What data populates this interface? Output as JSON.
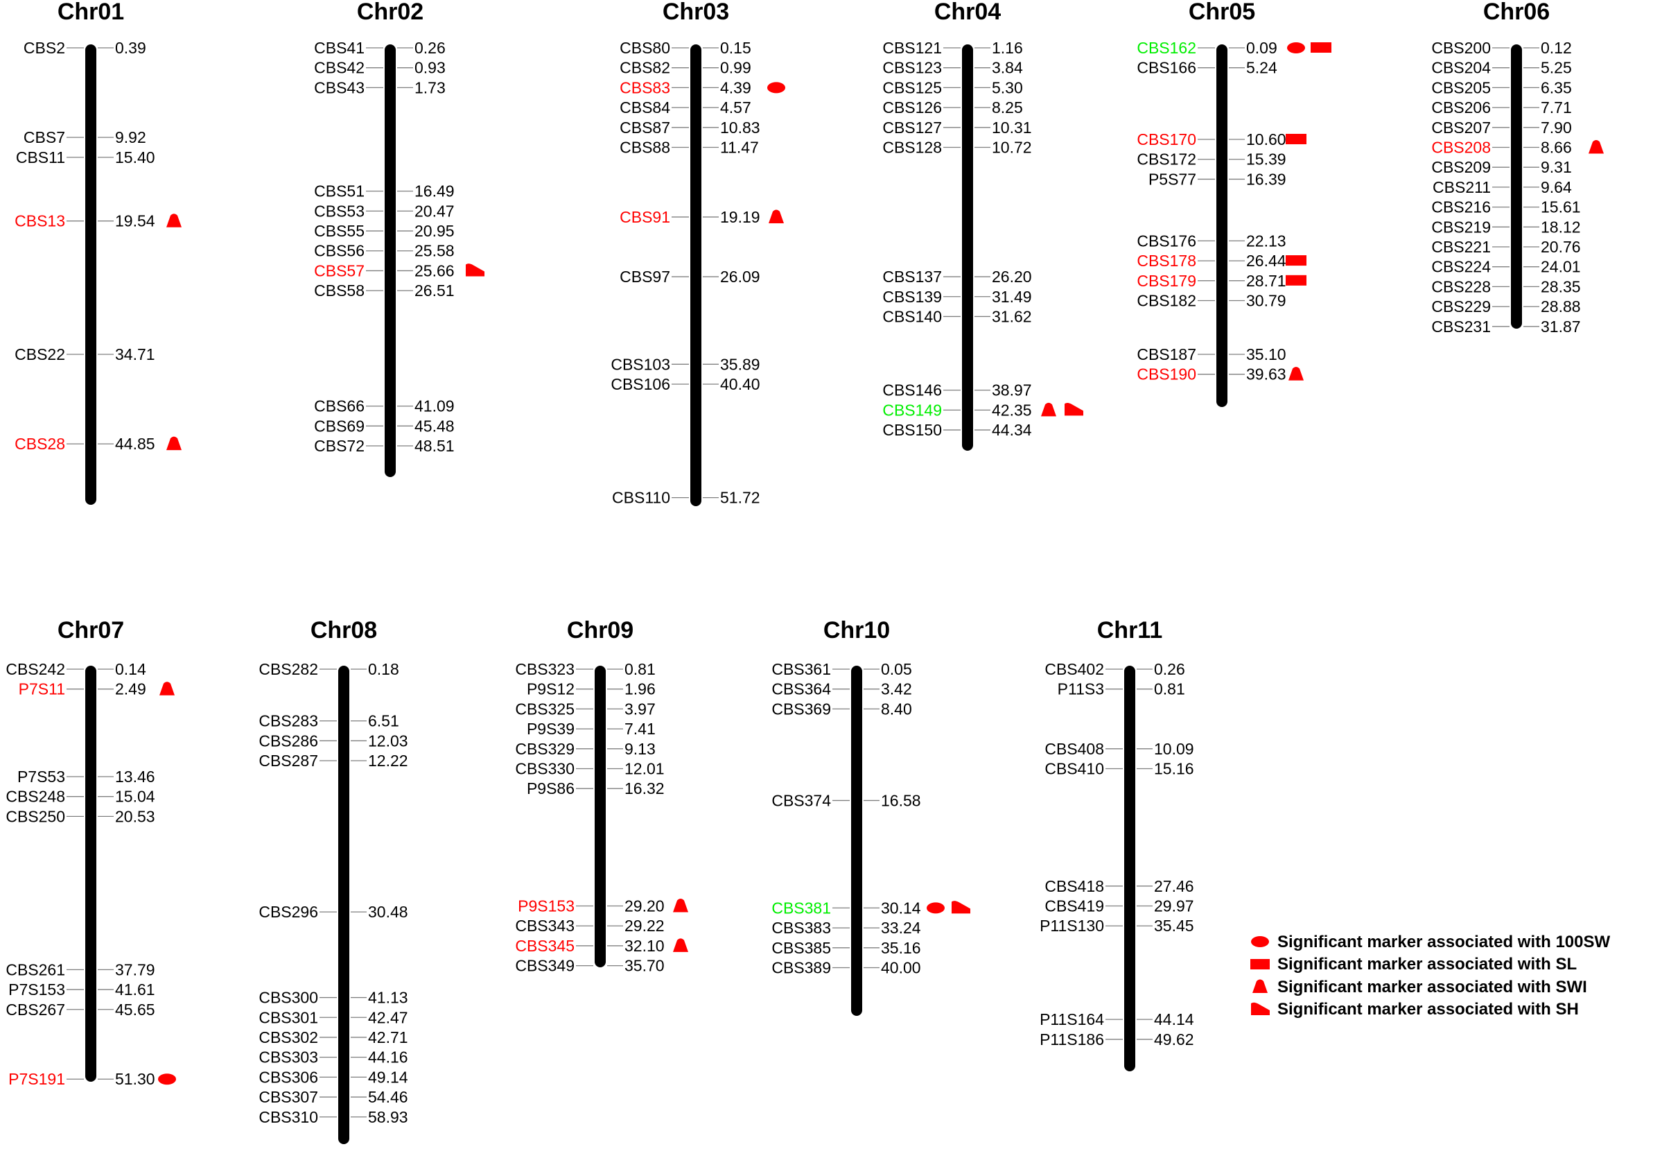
{
  "colors": {
    "marker_text": "#000000",
    "significant_marker_text": "#ff0000",
    "highlight_marker_text": "#00ee00",
    "symbol_fill": "#ff0000",
    "chromosome_bar": "#000000",
    "connector_line": "#7f7f7f"
  },
  "chromosomes": [
    {
      "name": "Chr01",
      "markers": [
        {
          "name": "CBS2",
          "pos": "0.39",
          "color": "black",
          "symbols": []
        },
        {
          "name": "CBS7",
          "pos": "9.92",
          "color": "black",
          "symbols": []
        },
        {
          "name": "CBS11",
          "pos": "15.40",
          "color": "black",
          "symbols": []
        },
        {
          "name": "CBS13",
          "pos": "19.54",
          "color": "red",
          "symbols": [
            "triangle"
          ]
        },
        {
          "name": "CBS22",
          "pos": "34.71",
          "color": "black",
          "symbols": []
        },
        {
          "name": "CBS28",
          "pos": "44.85",
          "color": "red",
          "symbols": [
            "triangle"
          ]
        }
      ]
    },
    {
      "name": "Chr02",
      "markers": [
        {
          "name": "CBS41",
          "pos": "0.26",
          "color": "black",
          "symbols": []
        },
        {
          "name": "CBS42",
          "pos": "0.93",
          "color": "black",
          "symbols": []
        },
        {
          "name": "CBS43",
          "pos": "1.73",
          "color": "black",
          "symbols": []
        },
        {
          "name": "CBS51",
          "pos": "16.49",
          "color": "black",
          "symbols": []
        },
        {
          "name": "CBS53",
          "pos": "20.47",
          "color": "black",
          "symbols": []
        },
        {
          "name": "CBS55",
          "pos": "20.95",
          "color": "black",
          "symbols": []
        },
        {
          "name": "CBS56",
          "pos": "25.58",
          "color": "black",
          "symbols": []
        },
        {
          "name": "CBS57",
          "pos": "25.66",
          "color": "red",
          "symbols": [
            "flag"
          ]
        },
        {
          "name": "CBS58",
          "pos": "26.51",
          "color": "black",
          "symbols": []
        },
        {
          "name": "CBS66",
          "pos": "41.09",
          "color": "black",
          "symbols": []
        },
        {
          "name": "CBS69",
          "pos": "45.48",
          "color": "black",
          "symbols": []
        },
        {
          "name": "CBS72",
          "pos": "48.51",
          "color": "black",
          "symbols": []
        }
      ]
    },
    {
      "name": "Chr03",
      "markers": [
        {
          "name": "CBS80",
          "pos": "0.15",
          "color": "black",
          "symbols": []
        },
        {
          "name": "CBS82",
          "pos": "0.99",
          "color": "black",
          "symbols": []
        },
        {
          "name": "CBS83",
          "pos": "4.39",
          "color": "red",
          "symbols": [
            "ellipse"
          ]
        },
        {
          "name": "CBS84",
          "pos": "4.57",
          "color": "black",
          "symbols": []
        },
        {
          "name": "CBS87",
          "pos": "10.83",
          "color": "black",
          "symbols": []
        },
        {
          "name": "CBS88",
          "pos": "11.47",
          "color": "black",
          "symbols": []
        },
        {
          "name": "CBS91",
          "pos": "19.19",
          "color": "red",
          "symbols": [
            "triangle"
          ]
        },
        {
          "name": "CBS97",
          "pos": "26.09",
          "color": "black",
          "symbols": []
        },
        {
          "name": "CBS103",
          "pos": "35.89",
          "color": "black",
          "symbols": []
        },
        {
          "name": "CBS106",
          "pos": "40.40",
          "color": "black",
          "symbols": []
        },
        {
          "name": "CBS110",
          "pos": "51.72",
          "color": "black",
          "symbols": []
        }
      ]
    },
    {
      "name": "Chr04",
      "markers": [
        {
          "name": "CBS121",
          "pos": "1.16",
          "color": "black",
          "symbols": []
        },
        {
          "name": "CBS123",
          "pos": "3.84",
          "color": "black",
          "symbols": []
        },
        {
          "name": "CBS125",
          "pos": "5.30",
          "color": "black",
          "symbols": []
        },
        {
          "name": "CBS126",
          "pos": "8.25",
          "color": "black",
          "symbols": []
        },
        {
          "name": "CBS127",
          "pos": "10.31",
          "color": "black",
          "symbols": []
        },
        {
          "name": "CBS128",
          "pos": "10.72",
          "color": "black",
          "symbols": []
        },
        {
          "name": "CBS137",
          "pos": "26.20",
          "color": "black",
          "symbols": []
        },
        {
          "name": "CBS139",
          "pos": "31.49",
          "color": "black",
          "symbols": []
        },
        {
          "name": "CBS140",
          "pos": "31.62",
          "color": "black",
          "symbols": []
        },
        {
          "name": "CBS146",
          "pos": "38.97",
          "color": "black",
          "symbols": []
        },
        {
          "name": "CBS149",
          "pos": "42.35",
          "color": "green",
          "symbols": [
            "triangle",
            "flag"
          ]
        },
        {
          "name": "CBS150",
          "pos": "44.34",
          "color": "black",
          "symbols": []
        }
      ]
    },
    {
      "name": "Chr05",
      "markers": [
        {
          "name": "CBS162",
          "pos": "0.09",
          "color": "green",
          "symbols": [
            "ellipse",
            "rect"
          ]
        },
        {
          "name": "CBS166",
          "pos": "5.24",
          "color": "black",
          "symbols": []
        },
        {
          "name": "CBS170",
          "pos": "10.60",
          "color": "red",
          "symbols": [
            "rect"
          ]
        },
        {
          "name": "CBS172",
          "pos": "15.39",
          "color": "black",
          "symbols": []
        },
        {
          "name": "P5S77",
          "pos": "16.39",
          "color": "black",
          "symbols": []
        },
        {
          "name": "CBS176",
          "pos": "22.13",
          "color": "black",
          "symbols": []
        },
        {
          "name": "CBS178",
          "pos": "26.44",
          "color": "red",
          "symbols": [
            "rect"
          ]
        },
        {
          "name": "CBS179",
          "pos": "28.71",
          "color": "red",
          "symbols": [
            "rect"
          ]
        },
        {
          "name": "CBS182",
          "pos": "30.79",
          "color": "black",
          "symbols": []
        },
        {
          "name": "CBS187",
          "pos": "35.10",
          "color": "black",
          "symbols": []
        },
        {
          "name": "CBS190",
          "pos": "39.63",
          "color": "red",
          "symbols": [
            "triangle"
          ]
        }
      ]
    },
    {
      "name": "Chr06",
      "markers": [
        {
          "name": "CBS200",
          "pos": "0.12",
          "color": "black",
          "symbols": []
        },
        {
          "name": "CBS204",
          "pos": "5.25",
          "color": "black",
          "symbols": []
        },
        {
          "name": "CBS205",
          "pos": "6.35",
          "color": "black",
          "symbols": []
        },
        {
          "name": "CBS206",
          "pos": "7.71",
          "color": "black",
          "symbols": []
        },
        {
          "name": "CBS207",
          "pos": "7.90",
          "color": "black",
          "symbols": []
        },
        {
          "name": "CBS208",
          "pos": "8.66",
          "color": "red",
          "symbols": [
            "triangle"
          ]
        },
        {
          "name": "CBS209",
          "pos": "9.31",
          "color": "black",
          "symbols": []
        },
        {
          "name": "CBS211",
          "pos": "9.64",
          "color": "black",
          "symbols": []
        },
        {
          "name": "CBS216",
          "pos": "15.61",
          "color": "black",
          "symbols": []
        },
        {
          "name": "CBS219",
          "pos": "18.12",
          "color": "black",
          "symbols": []
        },
        {
          "name": "CBS221",
          "pos": "20.76",
          "color": "black",
          "symbols": []
        },
        {
          "name": "CBS224",
          "pos": "24.01",
          "color": "black",
          "symbols": []
        },
        {
          "name": "CBS228",
          "pos": "28.35",
          "color": "black",
          "symbols": []
        },
        {
          "name": "CBS229",
          "pos": "28.88",
          "color": "black",
          "symbols": []
        },
        {
          "name": "CBS231",
          "pos": "31.87",
          "color": "black",
          "symbols": []
        }
      ]
    },
    {
      "name": "Chr07",
      "markers": [
        {
          "name": "CBS242",
          "pos": "0.14",
          "color": "black",
          "symbols": []
        },
        {
          "name": "P7S11",
          "pos": "2.49",
          "color": "red",
          "symbols": [
            "triangle"
          ]
        },
        {
          "name": "P7S53",
          "pos": "13.46",
          "color": "black",
          "symbols": []
        },
        {
          "name": "CBS248",
          "pos": "15.04",
          "color": "black",
          "symbols": []
        },
        {
          "name": "CBS250",
          "pos": "20.53",
          "color": "black",
          "symbols": []
        },
        {
          "name": "CBS261",
          "pos": "37.79",
          "color": "black",
          "symbols": []
        },
        {
          "name": "P7S153",
          "pos": "41.61",
          "color": "black",
          "symbols": []
        },
        {
          "name": "CBS267",
          "pos": "45.65",
          "color": "black",
          "symbols": []
        },
        {
          "name": "P7S191",
          "pos": "51.30",
          "color": "red",
          "symbols": [
            "ellipse"
          ]
        }
      ]
    },
    {
      "name": "Chr08",
      "markers": [
        {
          "name": "CBS282",
          "pos": "0.18",
          "color": "black",
          "symbols": []
        },
        {
          "name": "CBS283",
          "pos": "6.51",
          "color": "black",
          "symbols": []
        },
        {
          "name": "CBS286",
          "pos": "12.03",
          "color": "black",
          "symbols": []
        },
        {
          "name": "CBS287",
          "pos": "12.22",
          "color": "black",
          "symbols": []
        },
        {
          "name": "CBS296",
          "pos": "30.48",
          "color": "black",
          "symbols": []
        },
        {
          "name": "CBS300",
          "pos": "41.13",
          "color": "black",
          "symbols": []
        },
        {
          "name": "CBS301",
          "pos": "42.47",
          "color": "black",
          "symbols": []
        },
        {
          "name": "CBS302",
          "pos": "42.71",
          "color": "black",
          "symbols": []
        },
        {
          "name": "CBS303",
          "pos": "44.16",
          "color": "black",
          "symbols": []
        },
        {
          "name": "CBS306",
          "pos": "49.14",
          "color": "black",
          "symbols": []
        },
        {
          "name": "CBS307",
          "pos": "54.46",
          "color": "black",
          "symbols": []
        },
        {
          "name": "CBS310",
          "pos": "58.93",
          "color": "black",
          "symbols": []
        }
      ]
    },
    {
      "name": "Chr09",
      "markers": [
        {
          "name": "CBS323",
          "pos": "0.81",
          "color": "black",
          "symbols": []
        },
        {
          "name": "P9S12",
          "pos": "1.96",
          "color": "black",
          "symbols": []
        },
        {
          "name": "CBS325",
          "pos": "3.97",
          "color": "black",
          "symbols": []
        },
        {
          "name": "P9S39",
          "pos": "7.41",
          "color": "black",
          "symbols": []
        },
        {
          "name": "CBS329",
          "pos": "9.13",
          "color": "black",
          "symbols": []
        },
        {
          "name": "CBS330",
          "pos": "12.01",
          "color": "black",
          "symbols": []
        },
        {
          "name": "P9S86",
          "pos": "16.32",
          "color": "black",
          "symbols": []
        },
        {
          "name": "P9S153",
          "pos": "29.20",
          "color": "red",
          "symbols": [
            "triangle"
          ]
        },
        {
          "name": "CBS343",
          "pos": "29.22",
          "color": "black",
          "symbols": []
        },
        {
          "name": "CBS345",
          "pos": "32.10",
          "color": "red",
          "symbols": [
            "triangle"
          ]
        },
        {
          "name": "CBS349",
          "pos": "35.70",
          "color": "black",
          "symbols": []
        }
      ]
    },
    {
      "name": "Chr10",
      "markers": [
        {
          "name": "CBS361",
          "pos": "0.05",
          "color": "black",
          "symbols": []
        },
        {
          "name": "CBS364",
          "pos": "3.42",
          "color": "black",
          "symbols": []
        },
        {
          "name": "CBS369",
          "pos": "8.40",
          "color": "black",
          "symbols": []
        },
        {
          "name": "CBS374",
          "pos": "16.58",
          "color": "black",
          "symbols": []
        },
        {
          "name": "CBS381",
          "pos": "30.14",
          "color": "green",
          "symbols": [
            "ellipse",
            "flag"
          ]
        },
        {
          "name": "CBS383",
          "pos": "33.24",
          "color": "black",
          "symbols": []
        },
        {
          "name": "CBS385",
          "pos": "35.16",
          "color": "black",
          "symbols": []
        },
        {
          "name": "CBS389",
          "pos": "40.00",
          "color": "black",
          "symbols": []
        }
      ]
    },
    {
      "name": "Chr11",
      "markers": [
        {
          "name": "CBS402",
          "pos": "0.26",
          "color": "black",
          "symbols": []
        },
        {
          "name": "P11S3",
          "pos": "0.81",
          "color": "black",
          "symbols": []
        },
        {
          "name": "CBS408",
          "pos": "10.09",
          "color": "black",
          "symbols": []
        },
        {
          "name": "CBS410",
          "pos": "15.16",
          "color": "black",
          "symbols": []
        },
        {
          "name": "CBS418",
          "pos": "27.46",
          "color": "black",
          "symbols": []
        },
        {
          "name": "CBS419",
          "pos": "29.97",
          "color": "black",
          "symbols": []
        },
        {
          "name": "P11S130",
          "pos": "35.45",
          "color": "black",
          "symbols": []
        },
        {
          "name": "P11S164",
          "pos": "44.14",
          "color": "black",
          "symbols": []
        },
        {
          "name": "P11S186",
          "pos": "49.62",
          "color": "black",
          "symbols": []
        }
      ]
    }
  ],
  "legend": [
    {
      "symbol": "ellipse",
      "text": "Significant marker associated with 100SW"
    },
    {
      "symbol": "rect",
      "text": "Significant marker associated with SL"
    },
    {
      "symbol": "triangle",
      "text": "Significant marker associated with SWI"
    },
    {
      "symbol": "flag",
      "text": "Significant marker associated with SH"
    }
  ]
}
